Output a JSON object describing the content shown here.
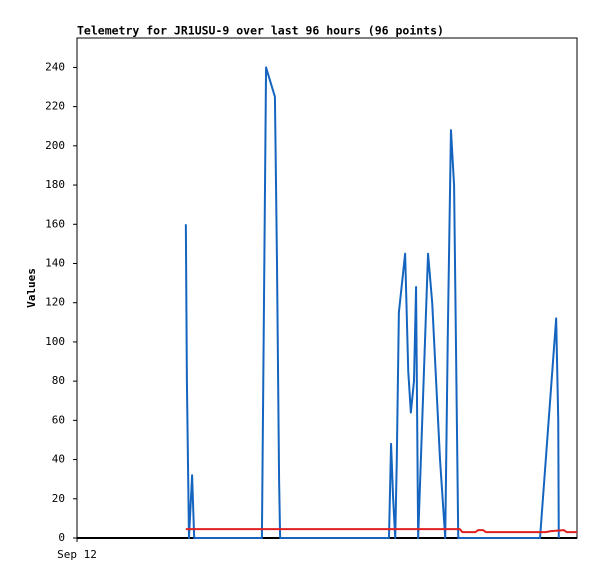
{
  "chart_data": {
    "type": "line",
    "title": "Telemetry for JR1USU-9 over last 96 hours (96 points)",
    "y_label": "Values",
    "xlim": [
      0,
      96
    ],
    "xticks": [
      {
        "value": 0,
        "label": "Sep 12"
      }
    ],
    "ylim": [
      0,
      255
    ],
    "yticks": [
      0,
      20,
      40,
      60,
      80,
      100,
      120,
      140,
      160,
      180,
      200,
      220,
      240
    ],
    "grid": false,
    "series": [
      {
        "color": "#000000",
        "x": [
          0,
          96
        ],
        "values": [
          0,
          0
        ]
      },
      {
        "color": "#1565c0",
        "x": [
          20.9,
          21.1,
          21.5,
          22.1,
          22.5,
          35.5,
          35.9,
          36.3,
          38.0,
          38.4,
          38.8,
          39.0,
          59.9,
          60.3,
          60.7,
          61.1,
          61.4,
          61.8,
          63.0,
          63.6,
          64.1,
          64.7,
          65.1,
          65.5,
          67.4,
          68.2,
          69.7,
          70.7,
          71.2,
          71.8,
          72.4,
          72.8,
          73.2,
          88.9,
          92.0,
          92.4,
          92.5
        ],
        "values": [
          160,
          80,
          0,
          32,
          0,
          0,
          120,
          240,
          225,
          140,
          30,
          0,
          0,
          48,
          20,
          0,
          40,
          115,
          145,
          85,
          64,
          80,
          128,
          0,
          145,
          120,
          40,
          0,
          105,
          208,
          180,
          90,
          0,
          0,
          112,
          60,
          0
        ]
      },
      {
        "color": "#e02020",
        "x": [
          20.9,
          73.5,
          74,
          76.5,
          77,
          78,
          78.5,
          90,
          91,
          93.5,
          94,
          96
        ],
        "values": [
          4.5,
          4.5,
          3,
          3,
          4,
          4,
          3,
          3,
          3.5,
          4,
          3,
          3
        ]
      }
    ]
  }
}
